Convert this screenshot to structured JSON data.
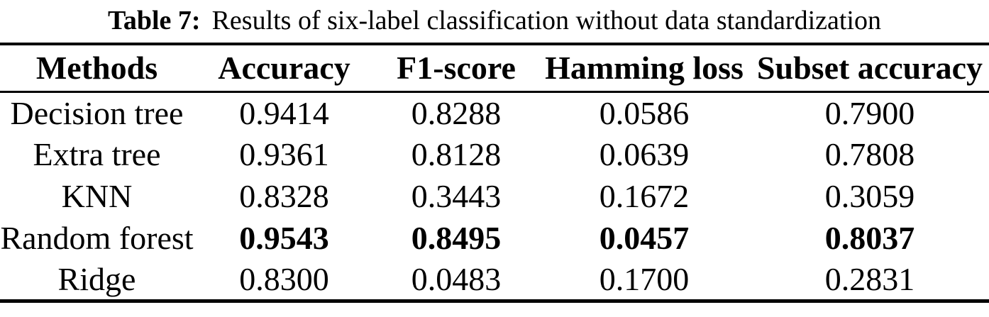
{
  "caption": {
    "label": "Table 7:",
    "text": "Results of six-label classification without data standardization"
  },
  "table": {
    "headers": [
      "Methods",
      "Accuracy",
      "F1-score",
      "Hamming loss",
      "Subset accuracy"
    ],
    "rows": [
      {
        "method": "Decision tree",
        "accuracy": "0.9414",
        "f1_score": "0.8288",
        "hamming_loss": "0.0586",
        "subset_accuracy": "0.7900",
        "emphasized": false
      },
      {
        "method": "Extra tree",
        "accuracy": "0.9361",
        "f1_score": "0.8128",
        "hamming_loss": "0.0639",
        "subset_accuracy": "0.7808",
        "emphasized": false
      },
      {
        "method": "KNN",
        "accuracy": "0.8328",
        "f1_score": "0.3443",
        "hamming_loss": "0.1672",
        "subset_accuracy": "0.3059",
        "emphasized": false
      },
      {
        "method": "Random forest",
        "accuracy": "0.9543",
        "f1_score": "0.8495",
        "hamming_loss": "0.0457",
        "subset_accuracy": "0.8037",
        "emphasized": true
      },
      {
        "method": "Ridge",
        "accuracy": "0.8300",
        "f1_score": "0.0483",
        "hamming_loss": "0.1700",
        "subset_accuracy": "0.2831",
        "emphasized": false
      }
    ]
  },
  "colors": {
    "text": "#000000",
    "background": "#ffffff",
    "rule": "#000000"
  },
  "chart_data": {
    "type": "table",
    "title": "Table 7: Results of six-label classification without data standardization",
    "columns": [
      "Methods",
      "Accuracy",
      "F1-score",
      "Hamming loss",
      "Subset accuracy"
    ],
    "rows": [
      [
        "Decision tree",
        0.9414,
        0.8288,
        0.0586,
        0.79
      ],
      [
        "Extra tree",
        0.9361,
        0.8128,
        0.0639,
        0.7808
      ],
      [
        "KNN",
        0.8328,
        0.3443,
        0.1672,
        0.3059
      ],
      [
        "Random forest",
        0.9543,
        0.8495,
        0.0457,
        0.8037
      ],
      [
        "Ridge",
        0.83,
        0.0483,
        0.17,
        0.2831
      ]
    ],
    "emphasized_row": "Random forest",
    "best_values_bold": true
  }
}
